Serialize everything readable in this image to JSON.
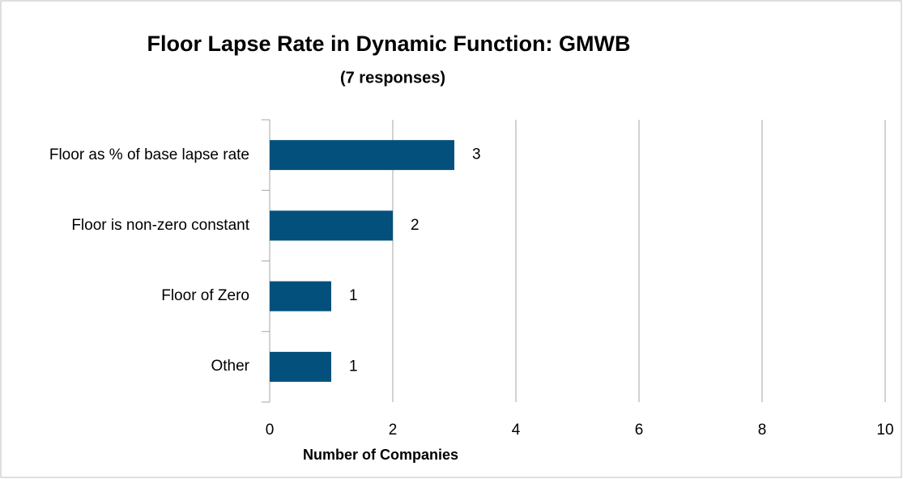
{
  "chart_data": {
    "type": "bar",
    "orientation": "horizontal",
    "title": "Floor Lapse Rate in Dynamic Function:  GMWB",
    "subtitle": "(7 responses)",
    "x_label": "Number of Companies",
    "categories": [
      "Floor as % of base lapse rate",
      "Floor is non-zero constant",
      "Floor of Zero",
      "Other"
    ],
    "values": [
      3,
      2,
      1,
      1
    ],
    "color": "#04507d",
    "xlim": [
      0,
      10
    ],
    "xticks": [
      0,
      2,
      4,
      6,
      8,
      10
    ],
    "grid": true
  }
}
